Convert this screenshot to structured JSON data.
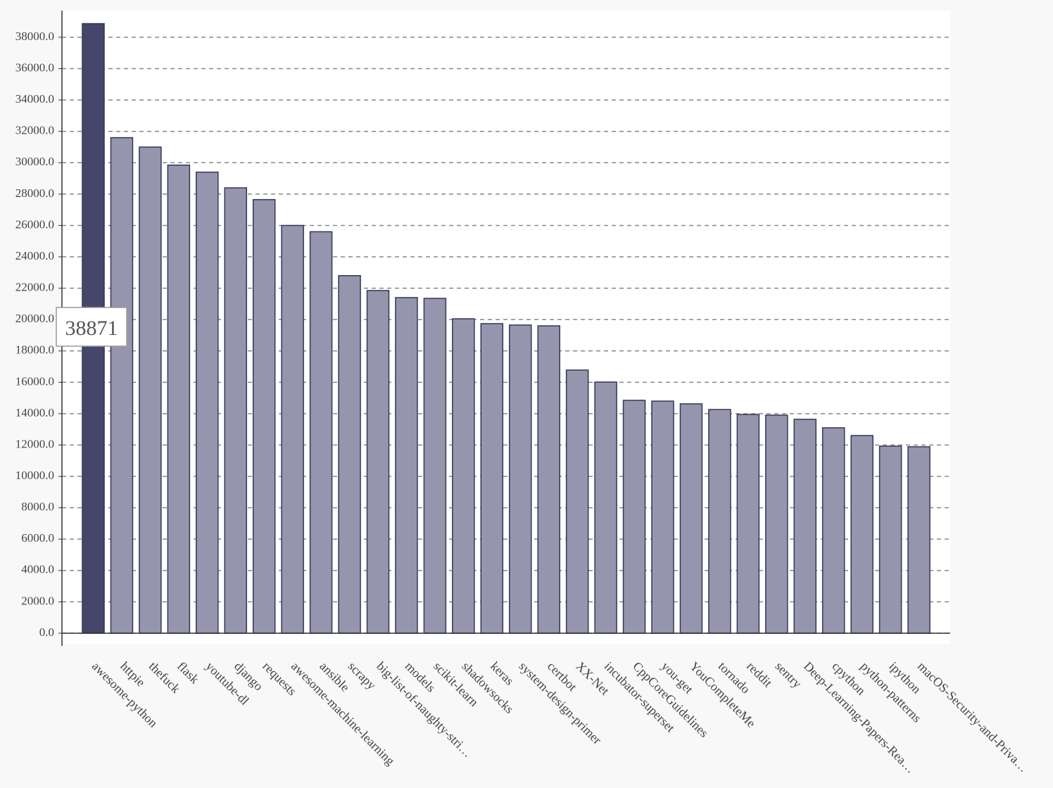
{
  "chart_data": {
    "type": "bar",
    "categories": [
      "awesome-python",
      "httpie",
      "thefuck",
      "flask",
      "youtube-dl",
      "django",
      "requests",
      "awesome-machine-learning",
      "ansible",
      "scrapy",
      "big-list-of-naughty-stri…",
      "models",
      "scikit-learn",
      "shadowsocks",
      "keras",
      "system-design-primer",
      "certbot",
      "XX-Net",
      "incubator-superset",
      "CppCoreGuidelines",
      "you-get",
      "YouCompleteMe",
      "tornado",
      "reddit",
      "sentry",
      "Deep-Learning-Papers-Rea…",
      "cpython",
      "python-patterns",
      "ipython",
      "macOS-Security-and-Priva…"
    ],
    "values": [
      38871,
      31600,
      31000,
      29850,
      29400,
      28400,
      27650,
      26000,
      25600,
      22800,
      21850,
      21400,
      21350,
      20050,
      19740,
      19650,
      19600,
      16780,
      16015,
      14850,
      14800,
      14625,
      14265,
      13950,
      13905,
      13640,
      13100,
      12605,
      11930,
      11890
    ],
    "color": "#9595ad",
    "highlight_color": "#46466a",
    "stroke": "#35355a",
    "tooltip": "38871",
    "ylim": [
      0,
      40000
    ],
    "yticks": [
      {
        "value": 0,
        "label": "0.0"
      },
      {
        "value": 2000,
        "label": "2000.0"
      },
      {
        "value": 4000,
        "label": "4000.0"
      },
      {
        "value": 6000,
        "label": "6000.0"
      },
      {
        "value": 8000,
        "label": "8000.0"
      },
      {
        "value": 10000,
        "label": "10000.0"
      },
      {
        "value": 12000,
        "label": "12000.0"
      },
      {
        "value": 14000,
        "label": "14000.0"
      },
      {
        "value": 16000,
        "label": "16000.0"
      },
      {
        "value": 18000,
        "label": "18000.0"
      },
      {
        "value": 20000,
        "label": "20000.0"
      },
      {
        "value": 22000,
        "label": "22000.0"
      },
      {
        "value": 24000,
        "label": "24000.0"
      },
      {
        "value": 26000,
        "label": "26000.0"
      },
      {
        "value": 28000,
        "label": "28000.0"
      },
      {
        "value": 30000,
        "label": "30000.0"
      },
      {
        "value": 32000,
        "label": "32000.0"
      },
      {
        "value": 34000,
        "label": "34000.0"
      },
      {
        "value": 36000,
        "label": "36000.0"
      },
      {
        "value": 38000,
        "label": "38000.0"
      }
    ],
    "grid": true
  }
}
